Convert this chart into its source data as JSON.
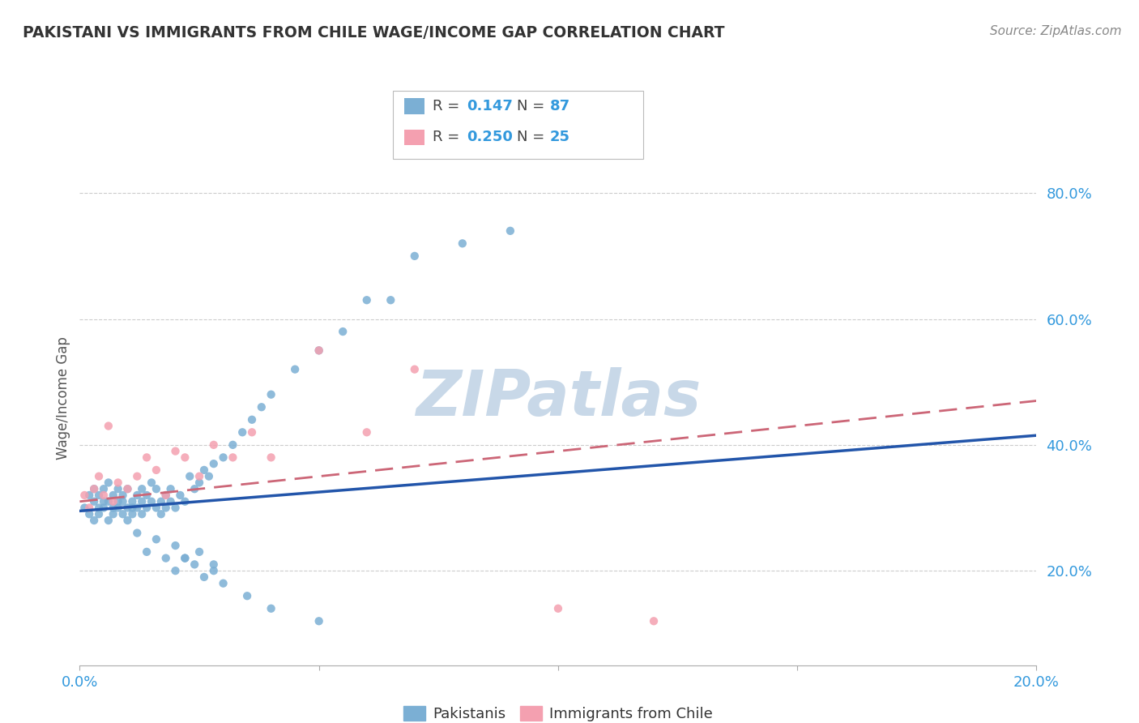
{
  "title": "PAKISTANI VS IMMIGRANTS FROM CHILE WAGE/INCOME GAP CORRELATION CHART",
  "source": "Source: ZipAtlas.com",
  "ylabel": "Wage/Income Gap",
  "xlim": [
    0.0,
    0.2
  ],
  "ylim": [
    0.05,
    0.9
  ],
  "blue_color": "#7BAFD4",
  "pink_color": "#F4A0B0",
  "trend_blue": "#2255AA",
  "trend_pink": "#CC6677",
  "watermark": "ZIPatlas",
  "watermark_color": "#C8D8E8",
  "pakistanis_label": "Pakistanis",
  "chile_label": "Immigrants from Chile",
  "blue_scatter_x": [
    0.001,
    0.002,
    0.002,
    0.003,
    0.003,
    0.003,
    0.004,
    0.004,
    0.004,
    0.005,
    0.005,
    0.005,
    0.006,
    0.006,
    0.006,
    0.007,
    0.007,
    0.007,
    0.008,
    0.008,
    0.008,
    0.009,
    0.009,
    0.009,
    0.01,
    0.01,
    0.01,
    0.011,
    0.011,
    0.011,
    0.012,
    0.012,
    0.013,
    0.013,
    0.013,
    0.014,
    0.014,
    0.015,
    0.015,
    0.016,
    0.016,
    0.017,
    0.017,
    0.018,
    0.018,
    0.019,
    0.019,
    0.02,
    0.021,
    0.022,
    0.023,
    0.024,
    0.025,
    0.026,
    0.027,
    0.028,
    0.03,
    0.032,
    0.034,
    0.036,
    0.038,
    0.04,
    0.045,
    0.05,
    0.055,
    0.06,
    0.065,
    0.07,
    0.08,
    0.09,
    0.02,
    0.022,
    0.025,
    0.028,
    0.012,
    0.014,
    0.016,
    0.018,
    0.02,
    0.022,
    0.024,
    0.026,
    0.028,
    0.03,
    0.035,
    0.04,
    0.05
  ],
  "blue_scatter_y": [
    0.3,
    0.32,
    0.29,
    0.31,
    0.28,
    0.33,
    0.3,
    0.32,
    0.29,
    0.31,
    0.3,
    0.33,
    0.31,
    0.28,
    0.34,
    0.3,
    0.32,
    0.29,
    0.31,
    0.3,
    0.33,
    0.31,
    0.29,
    0.32,
    0.3,
    0.28,
    0.33,
    0.31,
    0.3,
    0.29,
    0.32,
    0.3,
    0.31,
    0.29,
    0.33,
    0.3,
    0.32,
    0.34,
    0.31,
    0.3,
    0.33,
    0.31,
    0.29,
    0.32,
    0.3,
    0.31,
    0.33,
    0.3,
    0.32,
    0.31,
    0.35,
    0.33,
    0.34,
    0.36,
    0.35,
    0.37,
    0.38,
    0.4,
    0.42,
    0.44,
    0.46,
    0.48,
    0.52,
    0.55,
    0.58,
    0.63,
    0.63,
    0.7,
    0.72,
    0.74,
    0.24,
    0.22,
    0.23,
    0.21,
    0.26,
    0.23,
    0.25,
    0.22,
    0.2,
    0.22,
    0.21,
    0.19,
    0.2,
    0.18,
    0.16,
    0.14,
    0.12
  ],
  "pink_scatter_x": [
    0.001,
    0.002,
    0.003,
    0.004,
    0.005,
    0.006,
    0.007,
    0.008,
    0.01,
    0.012,
    0.014,
    0.016,
    0.018,
    0.02,
    0.022,
    0.025,
    0.028,
    0.032,
    0.036,
    0.04,
    0.05,
    0.06,
    0.07,
    0.1,
    0.12
  ],
  "pink_scatter_y": [
    0.32,
    0.3,
    0.33,
    0.35,
    0.32,
    0.43,
    0.31,
    0.34,
    0.33,
    0.35,
    0.38,
    0.36,
    0.32,
    0.39,
    0.38,
    0.35,
    0.4,
    0.38,
    0.42,
    0.38,
    0.55,
    0.42,
    0.52,
    0.14,
    0.12
  ],
  "blue_trend_x": [
    0.0,
    0.2
  ],
  "blue_trend_y": [
    0.295,
    0.415
  ],
  "pink_trend_x": [
    0.0,
    0.2
  ],
  "pink_trend_y": [
    0.31,
    0.47
  ]
}
